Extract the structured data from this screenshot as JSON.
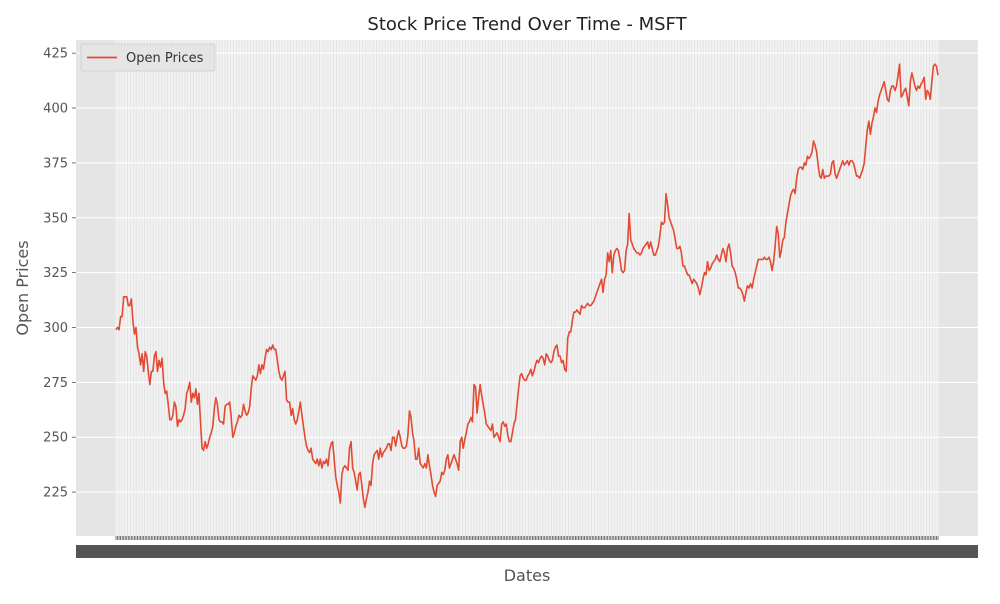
{
  "chart_data": {
    "type": "line",
    "title": "Stock Price Trend Over Time - MSFT",
    "xlabel": "Dates",
    "ylabel": "Open Prices",
    "ylim": [
      205,
      431
    ],
    "yticks": [
      225,
      250,
      275,
      300,
      325,
      350,
      375,
      400,
      425
    ],
    "grid": true,
    "legend_position": "top-left",
    "x_tick_labels_note": "dense overlapping date labels (illegible)",
    "series": [
      {
        "name": "Open Prices",
        "color": "#E24A33",
        "values": [
          299,
          300,
          299,
          305,
          305,
          314,
          314,
          314,
          310,
          310,
          313,
          303,
          297,
          300,
          291,
          288,
          283,
          288,
          280,
          289,
          287,
          280,
          274,
          280,
          280,
          287,
          289,
          280,
          285,
          282,
          286,
          275,
          270,
          271,
          265,
          258,
          258,
          260,
          266,
          264,
          255,
          258,
          257,
          258,
          260,
          263,
          270,
          272,
          275,
          266,
          270,
          268,
          272,
          265,
          270,
          257,
          245,
          244,
          248,
          245,
          247,
          250,
          252,
          255,
          263,
          268,
          265,
          258,
          257,
          257,
          256,
          264,
          265,
          265,
          266,
          259,
          250,
          252,
          255,
          257,
          260,
          259,
          260,
          265,
          262,
          260,
          261,
          264,
          272,
          278,
          277,
          276,
          278,
          283,
          279,
          283,
          281,
          286,
          290,
          289,
          291,
          290,
          292,
          290,
          290,
          285,
          280,
          277,
          276,
          278,
          280,
          267,
          266,
          266,
          260,
          263,
          258,
          256,
          258,
          262,
          266,
          260,
          255,
          250,
          246,
          244,
          243,
          245,
          240,
          239,
          238,
          240,
          237,
          240,
          236,
          239,
          238,
          240,
          237,
          244,
          247,
          248,
          240,
          232,
          228,
          225,
          220,
          233,
          236,
          237,
          236,
          235,
          245,
          248,
          236,
          234,
          230,
          226,
          233,
          234,
          228,
          222,
          218,
          222,
          225,
          230,
          228,
          238,
          242,
          243,
          244,
          240,
          245,
          241,
          243,
          244,
          245,
          247,
          247,
          244,
          250,
          250,
          246,
          250,
          253,
          250,
          246,
          245,
          245,
          246,
          251,
          262,
          259,
          252,
          248,
          240,
          240,
          245,
          238,
          237,
          236,
          238,
          236,
          242,
          237,
          233,
          228,
          225,
          223,
          228,
          229,
          230,
          234,
          233,
          235,
          240,
          242,
          236,
          238,
          240,
          242,
          240,
          238,
          235,
          248,
          250,
          245,
          249,
          252,
          256,
          257,
          259,
          257,
          274,
          273,
          261,
          268,
          274,
          269,
          265,
          261,
          256,
          255,
          254,
          253,
          256,
          250,
          251,
          252,
          250,
          248,
          256,
          257,
          255,
          256,
          251,
          248,
          248,
          252,
          256,
          258,
          265,
          272,
          278,
          279,
          277,
          276,
          276,
          278,
          279,
          281,
          278,
          280,
          283,
          285,
          284,
          286,
          287,
          286,
          283,
          288,
          287,
          285,
          284,
          285,
          289,
          291,
          292,
          287,
          287,
          284,
          285,
          281,
          280,
          295,
          298,
          298,
          303,
          307,
          307,
          308,
          307,
          306,
          310,
          309,
          309,
          310,
          311,
          310,
          310,
          311,
          312,
          314,
          316,
          318,
          320,
          322,
          316,
          322,
          324,
          334,
          330,
          335,
          325,
          333,
          335,
          336,
          335,
          331,
          326,
          325,
          326,
          335,
          338,
          352,
          340,
          338,
          336,
          335,
          334,
          334,
          333,
          334,
          336,
          337,
          338,
          339,
          336,
          339,
          336,
          333,
          333,
          335,
          337,
          342,
          348,
          347,
          348,
          361,
          356,
          350,
          348,
          346,
          344,
          340,
          336,
          336,
          337,
          334,
          328,
          328,
          326,
          324,
          324,
          322,
          320,
          322,
          321,
          320,
          318,
          315,
          318,
          322,
          325,
          324,
          330,
          326,
          327,
          329,
          330,
          331,
          333,
          331,
          330,
          333,
          336,
          334,
          330,
          336,
          338,
          334,
          328,
          327,
          325,
          322,
          318,
          318,
          317,
          315,
          312,
          316,
          319,
          318,
          320,
          318,
          322,
          325,
          328,
          331,
          331,
          331,
          331,
          332,
          331,
          331,
          332,
          330,
          326,
          330,
          337,
          346,
          343,
          332,
          335,
          340,
          341,
          348,
          352,
          356,
          360,
          362,
          363,
          361,
          368,
          372,
          373,
          373,
          372,
          375,
          374,
          378,
          377,
          378,
          380,
          385,
          383,
          380,
          374,
          369,
          368,
          372,
          368,
          369,
          369,
          369,
          370,
          375,
          376,
          370,
          368,
          370,
          372,
          374,
          376,
          374,
          375,
          376,
          374,
          376,
          376,
          375,
          372,
          369,
          369,
          368,
          370,
          372,
          375,
          383,
          390,
          394,
          388,
          393,
          396,
          400,
          398,
          403,
          406,
          408,
          410,
          412,
          408,
          404,
          403,
          408,
          410,
          410,
          408,
          410,
          415,
          420,
          405,
          406,
          408,
          409,
          405,
          401,
          412,
          416,
          413,
          410,
          408,
          410,
          409,
          411,
          412,
          414,
          404,
          408,
          407,
          404,
          412,
          419,
          420,
          419,
          415
        ]
      }
    ]
  }
}
